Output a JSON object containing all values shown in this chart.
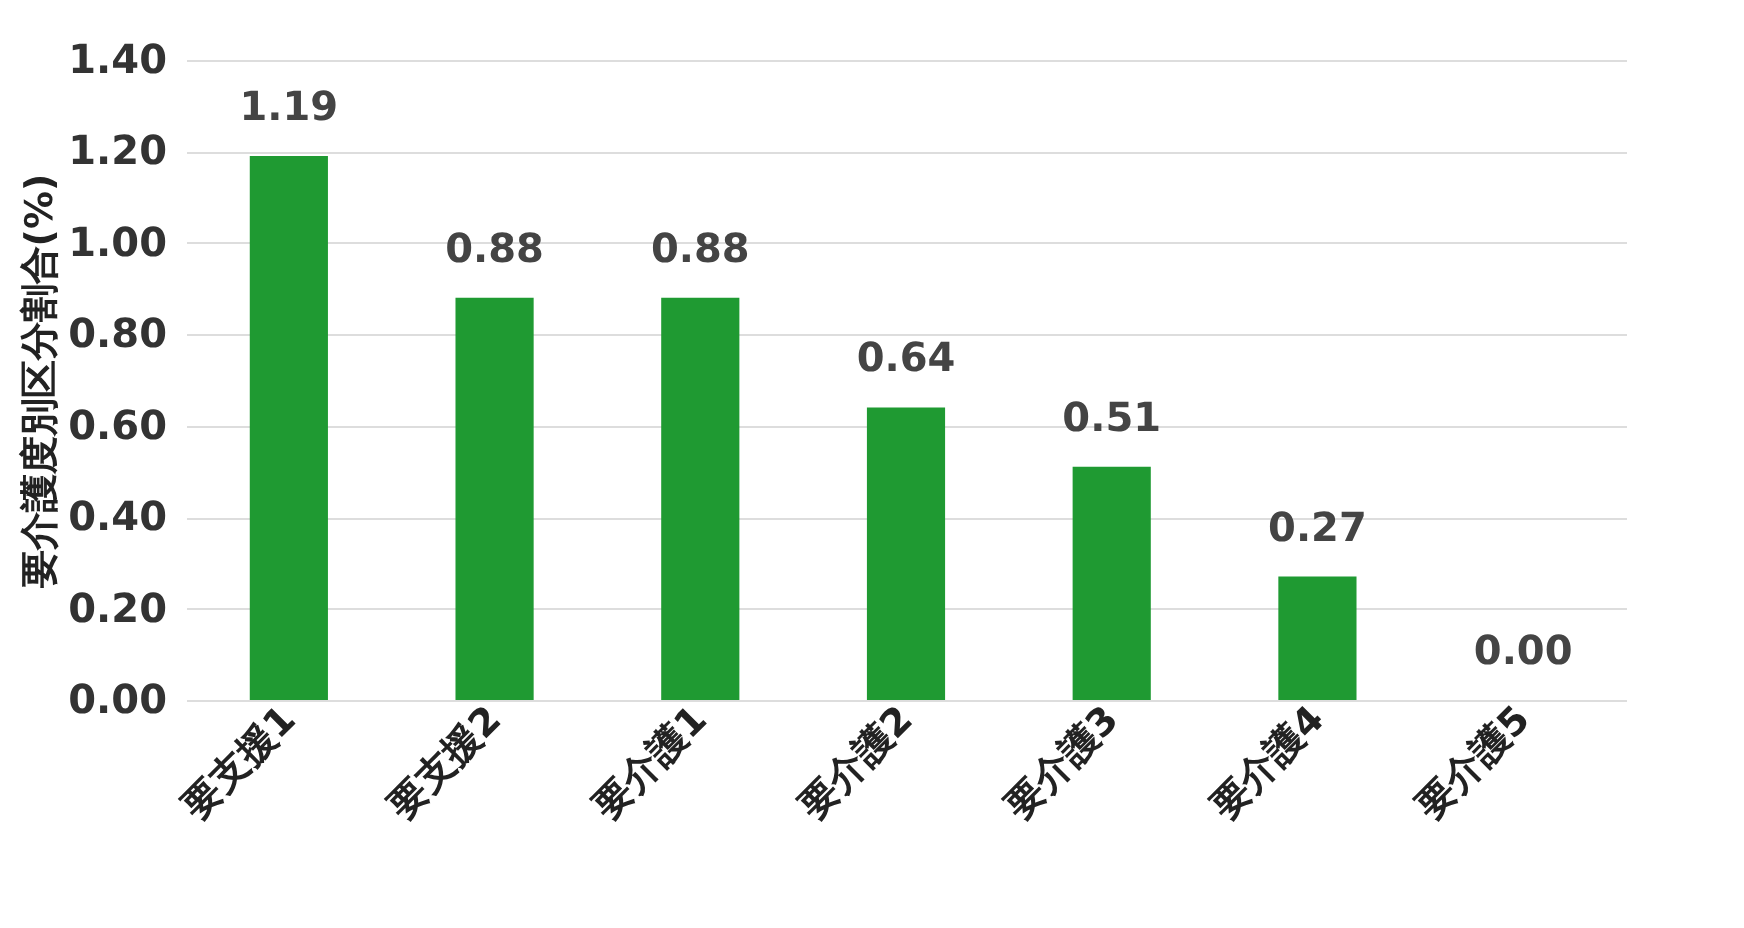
{
  "chart_data": {
    "type": "bar",
    "ylabel": "要介護度別区分割合(%)",
    "categories": [
      "要支援1",
      "要支援2",
      "要介護1",
      "要介護2",
      "要介護3",
      "要介護4",
      "要介護5"
    ],
    "values": [
      1.19,
      0.88,
      0.88,
      0.64,
      0.51,
      0.27,
      0.0
    ],
    "value_labels": [
      "1.19",
      "0.88",
      "0.88",
      "0.64",
      "0.51",
      "0.27",
      "0.00"
    ],
    "color": "#1f9a32",
    "ylim": [
      0,
      1.4
    ],
    "yticks": [
      {
        "value": 0,
        "label": "0.00"
      },
      {
        "value": 0.2,
        "label": "0.20"
      },
      {
        "value": 0.4,
        "label": "0.40"
      },
      {
        "value": 0.6,
        "label": "0.60"
      },
      {
        "value": 0.8,
        "label": "0.80"
      },
      {
        "value": 1.0,
        "label": "1.00"
      },
      {
        "value": 1.2,
        "label": "1.20"
      },
      {
        "value": 1.4,
        "label": "1.40"
      }
    ],
    "grid": "y"
  }
}
